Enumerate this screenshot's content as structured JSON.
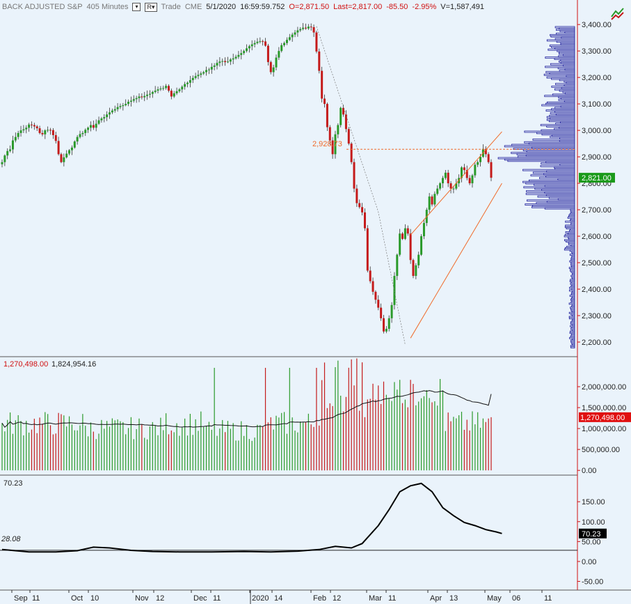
{
  "header": {
    "symbol": "BACK ADJUSTED S&P",
    "interval": "405 Minutes",
    "mode_label": "R",
    "trade": "Trade",
    "exchange": "CME",
    "date": "5/1/2020",
    "time": "16:59:59.752",
    "open": "O=2,871.50",
    "last": "Last=2,817.00",
    "change": "-85.50",
    "change_pct": "-2.95%",
    "volume": "V=1,587,491"
  },
  "colors": {
    "background": "#eaf3fb",
    "up": "#2a9a2a",
    "down": "#c41a1a",
    "profile": "#1a1a9a",
    "accent": "#f06a2a",
    "axis": "#d01010",
    "last_price_badge": "#1a9a1a"
  },
  "chart_data": [
    {
      "type": "candlestick",
      "panel": "price",
      "ylim": [
        2150,
        3440
      ],
      "y_ticks": [
        "3,400.00",
        "3,300.00",
        "3,200.00",
        "3,100.00",
        "3,000.00",
        "2,900.00",
        "2,800.00",
        "2,700.00",
        "2,600.00",
        "2,500.00",
        "2,400.00",
        "2,300.00",
        "2,200.00"
      ],
      "y_tick_values": [
        3400,
        3300,
        3200,
        3100,
        3000,
        2900,
        2800,
        2700,
        2600,
        2500,
        2400,
        2300,
        2200
      ],
      "last_price_label": "2,821.00",
      "last_price": 2821,
      "reference_line_label": "2,928.73",
      "reference_line": 2928.73,
      "closes": [
        2880,
        2905,
        2922,
        2928,
        2962,
        2975,
        2990,
        3000,
        3004,
        3010,
        3022,
        3020,
        3015,
        3008,
        2990,
        2985,
        3000,
        3002,
        3001,
        2982,
        2960,
        2910,
        2880,
        2898,
        2912,
        2925,
        2935,
        2958,
        2975,
        2986,
        2990,
        3002,
        3010,
        3020,
        3010,
        3025,
        3038,
        3045,
        3050,
        3060,
        3068,
        3075,
        3080,
        3088,
        3092,
        3095,
        3100,
        3108,
        3112,
        3118,
        3122,
        3128,
        3125,
        3130,
        3135,
        3138,
        3145,
        3150,
        3155,
        3158,
        3160,
        3168,
        3150,
        3128,
        3140,
        3148,
        3155,
        3165,
        3175,
        3180,
        3190,
        3198,
        3205,
        3210,
        3215,
        3220,
        3228,
        3230,
        3240,
        3245,
        3255,
        3260,
        3262,
        3258,
        3260,
        3268,
        3272,
        3278,
        3285,
        3292,
        3300,
        3310,
        3318,
        3325,
        3330,
        3335,
        3337,
        3336,
        3320,
        3258,
        3220,
        3238,
        3275,
        3300,
        3322,
        3330,
        3342,
        3352,
        3362,
        3370,
        3378,
        3383,
        3388,
        3385,
        3392,
        3390,
        3370,
        3298,
        3225,
        3120,
        3100,
        3012,
        2962,
        2910,
        2985,
        3020,
        3085,
        3060,
        3005,
        2950,
        2880,
        2780,
        2725,
        2710,
        2690,
        2630,
        2470,
        2430,
        2390,
        2360,
        2330,
        2290,
        2240,
        2250,
        2290,
        2340,
        2450,
        2530,
        2610,
        2590,
        2630,
        2610,
        2510,
        2450,
        2490,
        2530,
        2600,
        2650,
        2700,
        2750,
        2720,
        2760,
        2780,
        2800,
        2820,
        2840,
        2800,
        2780,
        2780,
        2800,
        2820,
        2860,
        2850,
        2820,
        2800,
        2830,
        2870,
        2880,
        2900,
        2930,
        2910,
        2880,
        2821
      ],
      "trend_channel": {
        "lower": [
          [
            152,
            2215
          ],
          [
            186,
            2800
          ]
        ],
        "upper": [
          [
            152,
            2605
          ],
          [
            186,
            2995
          ]
        ]
      },
      "volume_profile": "horizontal histogram at right edge, 2,180 to 3,390"
    },
    {
      "type": "bar",
      "panel": "volume",
      "ylim": [
        -80000,
        2700000
      ],
      "y_ticks": [
        "2,000,000.00",
        "1,500,000.00",
        "1,000,000.00",
        "500,000.00",
        "0.00"
      ],
      "y_tick_values": [
        2000000,
        1500000,
        1000000,
        500000,
        0
      ],
      "value_label": "1,270,498.00",
      "average_label": "1,824,954.16",
      "last_value": 1270498,
      "average_last": 1824954.16
    },
    {
      "type": "line",
      "panel": "oscillator",
      "ylim": [
        -70,
        215
      ],
      "y_ticks": [
        "150.00",
        "100.00",
        "50.00",
        "0.00",
        "-50.00"
      ],
      "y_tick_values": [
        150,
        100,
        50,
        0,
        -50
      ],
      "value_label": "70.23",
      "ref_label": "28.08",
      "ref_value": 28.08,
      "last_value": 70.23,
      "points": [
        [
          0,
          30
        ],
        [
          10,
          24
        ],
        [
          20,
          24
        ],
        [
          28,
          27
        ],
        [
          34,
          36
        ],
        [
          40,
          34
        ],
        [
          48,
          28
        ],
        [
          56,
          25
        ],
        [
          66,
          24
        ],
        [
          78,
          24
        ],
        [
          90,
          25
        ],
        [
          100,
          24
        ],
        [
          110,
          26
        ],
        [
          118,
          30
        ],
        [
          124,
          38
        ],
        [
          130,
          34
        ],
        [
          134,
          45
        ],
        [
          140,
          90
        ],
        [
          144,
          130
        ],
        [
          148,
          175
        ],
        [
          152,
          190
        ],
        [
          156,
          196
        ],
        [
          160,
          175
        ],
        [
          164,
          135
        ],
        [
          168,
          115
        ],
        [
          172,
          98
        ],
        [
          176,
          90
        ],
        [
          180,
          80
        ],
        [
          184,
          74
        ],
        [
          186,
          70.23
        ]
      ]
    }
  ],
  "x_axis": {
    "labels": [
      "Sep",
      "11",
      "Oct",
      "10",
      "Nov",
      "12",
      "Dec",
      "11",
      "2020",
      "14",
      "Feb",
      "12",
      "Mar",
      "11",
      "Apr",
      "13",
      "May",
      "06",
      "11"
    ]
  }
}
